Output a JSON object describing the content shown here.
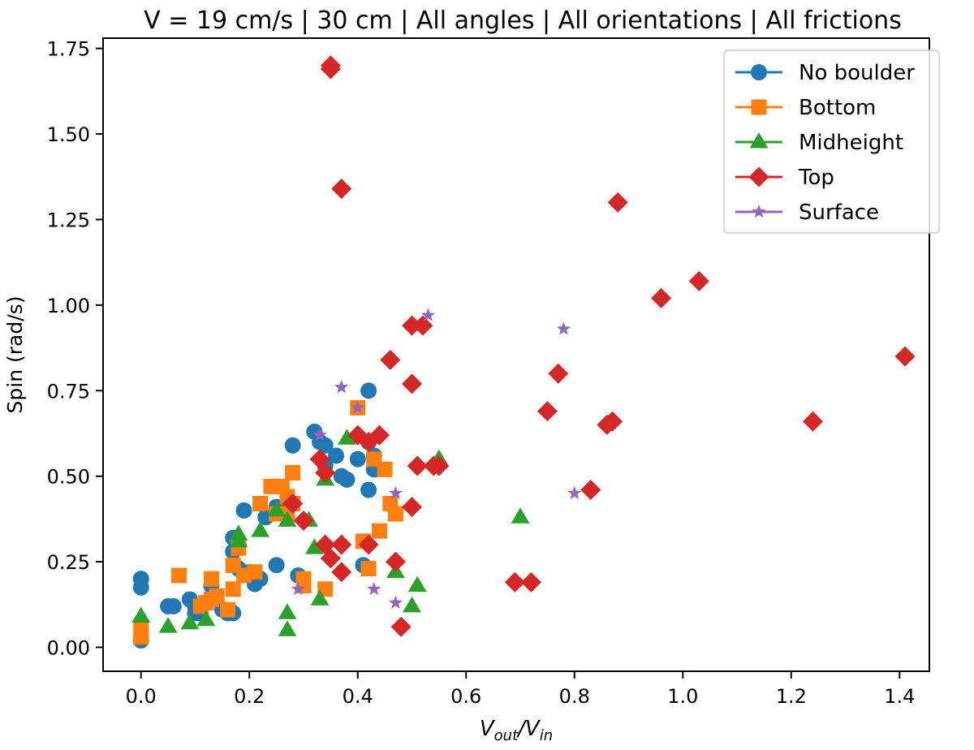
{
  "chart_data": {
    "type": "scatter",
    "title": "V = 19 cm/s | 30 cm | All angles | All orientations | All frictions",
    "xlabel_main": "V",
    "xlabel_sub1": "out",
    "xlabel_slash": "/V",
    "xlabel_sub2": "in",
    "ylabel": "Spin (rad/s)",
    "xlim": [
      -0.07,
      1.455
    ],
    "ylim": [
      -0.07,
      1.78
    ],
    "xticks": [
      0.0,
      0.2,
      0.4,
      0.6,
      0.8,
      1.0,
      1.2,
      1.4
    ],
    "xtick_labels": [
      "0.0",
      "0.2",
      "0.4",
      "0.6",
      "0.8",
      "1.0",
      "1.2",
      "1.4"
    ],
    "yticks": [
      0.0,
      0.25,
      0.5,
      0.75,
      1.0,
      1.25,
      1.5,
      1.75
    ],
    "ytick_labels": [
      "0.00",
      "0.25",
      "0.50",
      "0.75",
      "1.00",
      "1.25",
      "1.50",
      "1.75"
    ],
    "legend_position": "top-right",
    "grid": false,
    "series": [
      {
        "name": "No boulder",
        "marker": "circle",
        "color": "#1f77b4",
        "points": [
          [
            0.0,
            0.2
          ],
          [
            0.0,
            0.175
          ],
          [
            0.0,
            0.02
          ],
          [
            0.05,
            0.12
          ],
          [
            0.06,
            0.12
          ],
          [
            0.09,
            0.14
          ],
          [
            0.1,
            0.12
          ],
          [
            0.1,
            0.1
          ],
          [
            0.11,
            0.1
          ],
          [
            0.13,
            0.18
          ],
          [
            0.15,
            0.11
          ],
          [
            0.16,
            0.1
          ],
          [
            0.17,
            0.1
          ],
          [
            0.17,
            0.32
          ],
          [
            0.17,
            0.28
          ],
          [
            0.18,
            0.23
          ],
          [
            0.18,
            0.3
          ],
          [
            0.19,
            0.4
          ],
          [
            0.2,
            0.22
          ],
          [
            0.21,
            0.185
          ],
          [
            0.22,
            0.2
          ],
          [
            0.23,
            0.38
          ],
          [
            0.25,
            0.24
          ],
          [
            0.25,
            0.41
          ],
          [
            0.28,
            0.59
          ],
          [
            0.29,
            0.21
          ],
          [
            0.32,
            0.63
          ],
          [
            0.33,
            0.6
          ],
          [
            0.34,
            0.53
          ],
          [
            0.34,
            0.59
          ],
          [
            0.36,
            0.56
          ],
          [
            0.37,
            0.5
          ],
          [
            0.38,
            0.49
          ],
          [
            0.4,
            0.55
          ],
          [
            0.41,
            0.24
          ],
          [
            0.42,
            0.46
          ],
          [
            0.42,
            0.6
          ],
          [
            0.42,
            0.75
          ],
          [
            0.43,
            0.52
          ],
          [
            0.43,
            0.56
          ]
        ]
      },
      {
        "name": "Bottom",
        "marker": "square",
        "color": "#ff7f0e",
        "points": [
          [
            0.0,
            0.05
          ],
          [
            0.0,
            0.03
          ],
          [
            0.07,
            0.21
          ],
          [
            0.11,
            0.12
          ],
          [
            0.12,
            0.13
          ],
          [
            0.13,
            0.2
          ],
          [
            0.13,
            0.14
          ],
          [
            0.14,
            0.15
          ],
          [
            0.16,
            0.11
          ],
          [
            0.17,
            0.24
          ],
          [
            0.17,
            0.17
          ],
          [
            0.18,
            0.29
          ],
          [
            0.19,
            0.21
          ],
          [
            0.21,
            0.22
          ],
          [
            0.22,
            0.42
          ],
          [
            0.24,
            0.47
          ],
          [
            0.25,
            0.39
          ],
          [
            0.26,
            0.47
          ],
          [
            0.27,
            0.44
          ],
          [
            0.27,
            0.39
          ],
          [
            0.28,
            0.51
          ],
          [
            0.28,
            0.42
          ],
          [
            0.3,
            0.18
          ],
          [
            0.3,
            0.2
          ],
          [
            0.34,
            0.17
          ],
          [
            0.4,
            0.7
          ],
          [
            0.41,
            0.31
          ],
          [
            0.42,
            0.23
          ],
          [
            0.43,
            0.55
          ],
          [
            0.44,
            0.34
          ],
          [
            0.45,
            0.52
          ],
          [
            0.46,
            0.42
          ],
          [
            0.47,
            0.39
          ]
        ]
      },
      {
        "name": "Midheight",
        "marker": "triangle",
        "color": "#2ca02c",
        "points": [
          [
            0.0,
            0.09
          ],
          [
            0.05,
            0.06
          ],
          [
            0.09,
            0.07
          ],
          [
            0.12,
            0.08
          ],
          [
            0.18,
            0.33
          ],
          [
            0.18,
            0.31
          ],
          [
            0.22,
            0.34
          ],
          [
            0.25,
            0.4
          ],
          [
            0.27,
            0.05
          ],
          [
            0.27,
            0.1
          ],
          [
            0.27,
            0.37
          ],
          [
            0.31,
            0.37
          ],
          [
            0.32,
            0.29
          ],
          [
            0.33,
            0.14
          ],
          [
            0.34,
            0.49
          ],
          [
            0.38,
            0.61
          ],
          [
            0.47,
            0.22
          ],
          [
            0.5,
            0.12
          ],
          [
            0.51,
            0.18
          ],
          [
            0.55,
            0.55
          ],
          [
            0.7,
            0.38
          ]
        ]
      },
      {
        "name": "Top",
        "marker": "diamond",
        "color": "#d62728",
        "points": [
          [
            0.35,
            1.7
          ],
          [
            0.35,
            1.69
          ],
          [
            0.37,
            1.34
          ],
          [
            0.88,
            1.3
          ],
          [
            1.03,
            1.07
          ],
          [
            0.96,
            1.02
          ],
          [
            0.5,
            0.94
          ],
          [
            0.52,
            0.94
          ],
          [
            0.46,
            0.84
          ],
          [
            1.41,
            0.85
          ],
          [
            0.77,
            0.8
          ],
          [
            0.5,
            0.77
          ],
          [
            0.75,
            0.69
          ],
          [
            0.87,
            0.66
          ],
          [
            0.86,
            0.65
          ],
          [
            1.24,
            0.66
          ],
          [
            0.4,
            0.62
          ],
          [
            0.44,
            0.62
          ],
          [
            0.42,
            0.6
          ],
          [
            0.33,
            0.55
          ],
          [
            0.34,
            0.51
          ],
          [
            0.51,
            0.53
          ],
          [
            0.54,
            0.53
          ],
          [
            0.55,
            0.53
          ],
          [
            0.83,
            0.46
          ],
          [
            0.28,
            0.42
          ],
          [
            0.3,
            0.37
          ],
          [
            0.5,
            0.41
          ],
          [
            0.34,
            0.3
          ],
          [
            0.37,
            0.3
          ],
          [
            0.42,
            0.3
          ],
          [
            0.35,
            0.26
          ],
          [
            0.47,
            0.25
          ],
          [
            0.37,
            0.22
          ],
          [
            0.69,
            0.19
          ],
          [
            0.72,
            0.19
          ],
          [
            0.48,
            0.06
          ]
        ]
      },
      {
        "name": "Surface",
        "marker": "star",
        "color": "#9467bd",
        "points": [
          [
            0.53,
            0.97
          ],
          [
            0.78,
            0.93
          ],
          [
            0.37,
            0.76
          ],
          [
            0.4,
            0.7
          ],
          [
            0.33,
            0.62
          ],
          [
            0.47,
            0.45
          ],
          [
            0.8,
            0.45
          ],
          [
            0.29,
            0.17
          ],
          [
            0.43,
            0.17
          ],
          [
            0.47,
            0.13
          ]
        ]
      }
    ]
  }
}
